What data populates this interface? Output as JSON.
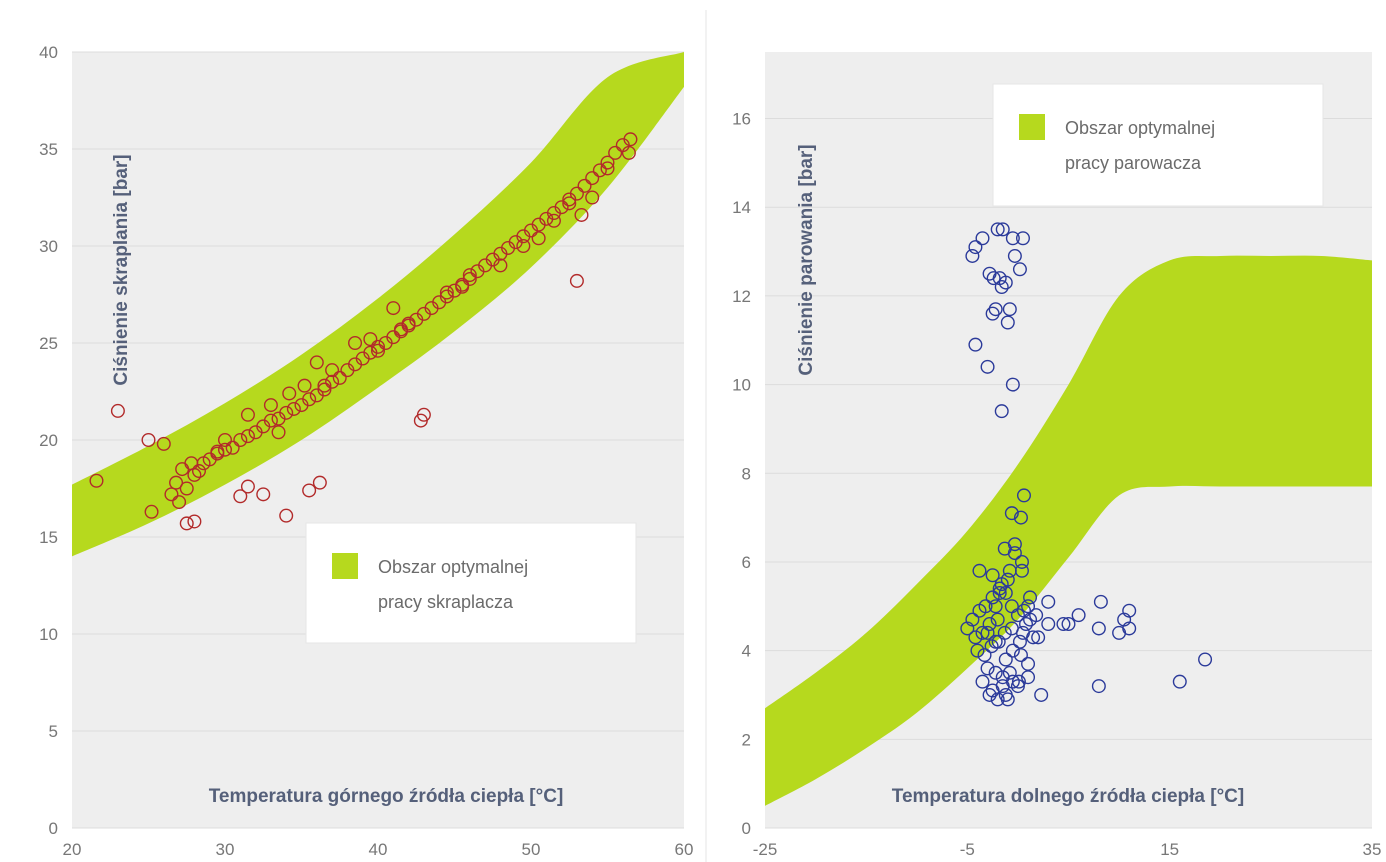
{
  "chart_data": [
    {
      "type": "scatter",
      "xlabel": "Temperatura górnego źródła ciepła [°C]",
      "ylabel": "Ciśnienie skraplania [bar]",
      "xlim": [
        20,
        60
      ],
      "ylim": [
        0,
        40
      ],
      "xticks": [
        20,
        30,
        40,
        50,
        60
      ],
      "yticks": [
        0,
        5,
        10,
        15,
        20,
        25,
        30,
        35,
        40
      ],
      "grid": true,
      "legend_position": "bottom-right",
      "colors": {
        "band": "#b6d91e",
        "points": "#b22a2a",
        "plot_bg": "#eeeeee"
      },
      "band": {
        "name": "Obszar optymalnej pracy skraplacza",
        "name_lines": [
          "Obszar optymalnej",
          "pracy skraplacza"
        ],
        "x": [
          20,
          25,
          30,
          35,
          40,
          45,
          50,
          55,
          60
        ],
        "lower": [
          14.0,
          15.7,
          17.7,
          20.0,
          22.7,
          25.6,
          28.9,
          33.0,
          38.2
        ],
        "upper": [
          17.7,
          19.7,
          21.9,
          24.4,
          27.3,
          30.6,
          34.3,
          38.7,
          40.0
        ]
      },
      "series": [
        {
          "x": [
            21.6,
            23.0,
            25.0,
            25.2,
            26.0,
            26.5,
            26.8,
            27.2,
            27.5,
            28.0,
            27.8,
            28.3,
            28.6,
            29.0,
            29.5,
            30.0,
            30.5,
            31.0,
            31.5,
            32.0,
            32.5,
            33.0,
            33.5,
            34.0,
            34.5,
            35.0,
            35.5,
            36.0,
            36.5,
            37.0,
            37.5,
            38.0,
            38.5,
            39.0,
            39.5,
            40.0,
            40.5,
            41.0,
            41.5,
            42.0,
            42.5,
            43.0,
            43.5,
            44.0,
            44.5,
            45.0,
            45.5,
            46.0,
            46.5,
            47.0,
            47.5,
            48.0,
            48.5,
            49.0,
            49.5,
            50.0,
            50.5,
            51.0,
            51.5,
            52.0,
            52.5,
            53.0,
            53.5,
            54.0,
            54.5,
            55.0,
            55.5,
            56.0,
            56.5,
            27.0,
            28.0,
            27.5,
            31.0,
            31.5,
            32.5,
            34.0,
            35.5,
            36.2,
            42.8,
            43.0,
            53.0,
            53.3,
            54.0,
            56.4,
            36.0,
            38.5,
            41.0,
            31.5,
            34.2,
            30.0,
            33.0,
            35.2,
            37.0,
            40.0,
            44.5,
            45.5,
            48.0,
            49.5,
            51.5,
            55.0,
            29.5,
            33.5,
            39.5,
            42.0,
            46.0,
            50.5,
            52.5,
            36.5,
            41.5
          ],
          "y": [
            17.9,
            21.5,
            20.0,
            16.3,
            19.8,
            17.2,
            17.8,
            18.5,
            17.5,
            18.2,
            18.8,
            18.4,
            18.8,
            19.0,
            19.3,
            19.5,
            19.6,
            20.0,
            20.2,
            20.4,
            20.7,
            21.0,
            21.1,
            21.4,
            21.6,
            21.8,
            22.1,
            22.3,
            22.6,
            23.0,
            23.2,
            23.6,
            23.9,
            24.2,
            24.5,
            24.8,
            25.0,
            25.3,
            25.6,
            25.9,
            26.2,
            26.5,
            26.8,
            27.1,
            27.4,
            27.7,
            28.0,
            28.3,
            28.7,
            29.0,
            29.3,
            29.6,
            29.9,
            30.2,
            30.5,
            30.8,
            31.1,
            31.4,
            31.7,
            32.0,
            32.4,
            32.7,
            33.1,
            33.5,
            33.9,
            34.3,
            34.8,
            35.2,
            35.5,
            16.8,
            15.8,
            15.7,
            17.1,
            17.6,
            17.2,
            16.1,
            17.4,
            17.8,
            21.0,
            21.3,
            28.2,
            31.6,
            32.5,
            34.8,
            24.0,
            25.0,
            26.8,
            21.3,
            22.4,
            20.0,
            21.8,
            22.8,
            23.6,
            24.6,
            27.6,
            27.9,
            29.0,
            30.0,
            31.3,
            34.0,
            19.4,
            20.4,
            25.2,
            26.0,
            28.5,
            30.4,
            32.2,
            22.8,
            25.7
          ]
        }
      ]
    },
    {
      "type": "scatter",
      "xlabel": "Temperatura dolnego źródła ciepła [°C]",
      "ylabel": "Ciśnienie parowania [bar]",
      "xlim": [
        -25,
        35
      ],
      "ylim": [
        0,
        17.5
      ],
      "xticks": [
        -25,
        -5,
        15,
        35
      ],
      "yticks": [
        0,
        2,
        4,
        6,
        8,
        10,
        12,
        14,
        16
      ],
      "grid": true,
      "legend_position": "top-right",
      "colors": {
        "band": "#b6d91e",
        "points": "#2b3a9a",
        "plot_bg": "#eeeeee"
      },
      "band": {
        "name": "Obszar optymalnej pracy parowacza",
        "name_lines": [
          "Obszar optymalnej",
          "pracy parowacza"
        ],
        "x": [
          -25,
          -20,
          -15,
          -10,
          -5,
          0,
          5,
          10,
          15,
          20,
          25,
          30,
          35
        ],
        "lower": [
          0.5,
          1.1,
          1.8,
          2.6,
          3.6,
          4.7,
          6.1,
          7.5,
          7.7,
          7.7,
          7.7,
          7.7,
          7.7
        ],
        "upper": [
          2.7,
          3.5,
          4.4,
          5.5,
          6.7,
          8.2,
          10.0,
          12.0,
          12.8,
          12.9,
          12.9,
          12.9,
          12.8
        ]
      },
      "series": [
        {
          "x": [
            -4.5,
            -4.2,
            -3.5,
            -2.0,
            -1.5,
            -0.5,
            0.5,
            -1.8,
            -1.6,
            -0.3,
            0.2,
            -1.2,
            -2.5,
            -0.8,
            -2.2,
            -1.0,
            -0.5,
            -4.2,
            -3.0,
            -1.6,
            -0.6,
            0.3,
            0.6,
            -1.3,
            -0.3,
            0.4,
            -0.8,
            -1.6,
            -2.2,
            0.4,
            -0.3,
            1.2,
            -4.5,
            -3.8,
            -3.2,
            -2.5,
            -1.8,
            -1.2,
            -0.6,
            0.0,
            0.6,
            1.2,
            1.8,
            -5.0,
            -4.2,
            -3.5,
            -2.8,
            -2.0,
            -1.3,
            -0.6,
            0.2,
            0.8,
            1.5,
            -4.0,
            -3.3,
            -2.6,
            -1.9,
            -1.2,
            -0.5,
            0.3,
            1.0,
            -3.0,
            -2.2,
            -1.5,
            -0.8,
            0.1,
            -2.5,
            -1.5,
            -0.5,
            -3.5,
            -2.8,
            -2.0,
            -1.0,
            0.0,
            1.0,
            -2.5,
            -1.8,
            -1.0,
            -3.0,
            -2.2,
            0.5,
            2.0,
            3.0,
            4.5,
            6.0,
            8.0,
            8.2,
            10.5,
            11.0,
            3.0,
            5.0,
            8.0,
            10.0,
            11.0,
            16.0,
            18.5,
            -2.8,
            -2.4,
            -1.2,
            2.3,
            1.0,
            -3.8
          ],
          "y": [
            12.9,
            13.1,
            13.3,
            13.5,
            13.5,
            13.3,
            13.3,
            12.4,
            12.2,
            12.9,
            12.6,
            12.3,
            11.6,
            11.7,
            11.7,
            11.4,
            10.0,
            10.9,
            10.4,
            9.4,
            7.1,
            7.0,
            7.5,
            6.3,
            6.4,
            6.0,
            5.8,
            5.5,
            5.0,
            5.8,
            6.2,
            5.2,
            4.7,
            4.9,
            5.0,
            5.2,
            5.4,
            5.3,
            5.0,
            4.8,
            4.9,
            4.7,
            4.8,
            4.5,
            4.3,
            4.4,
            4.6,
            4.7,
            4.4,
            4.5,
            4.2,
            4.6,
            4.3,
            4.0,
            3.9,
            4.1,
            4.2,
            3.8,
            4.0,
            3.9,
            3.7,
            3.6,
            3.5,
            3.4,
            3.5,
            3.3,
            3.1,
            3.2,
            3.3,
            3.3,
            3.0,
            2.9,
            2.9,
            3.2,
            3.4,
            5.7,
            5.3,
            5.6,
            4.4,
            4.2,
            4.4,
            4.3,
            5.1,
            4.6,
            4.8,
            4.5,
            5.1,
            4.7,
            4.9,
            4.6,
            4.6,
            3.2,
            4.4,
            4.5,
            3.3,
            3.8,
            12.5,
            12.4,
            3.0,
            3.0,
            5.0,
            5.8
          ]
        }
      ]
    }
  ]
}
